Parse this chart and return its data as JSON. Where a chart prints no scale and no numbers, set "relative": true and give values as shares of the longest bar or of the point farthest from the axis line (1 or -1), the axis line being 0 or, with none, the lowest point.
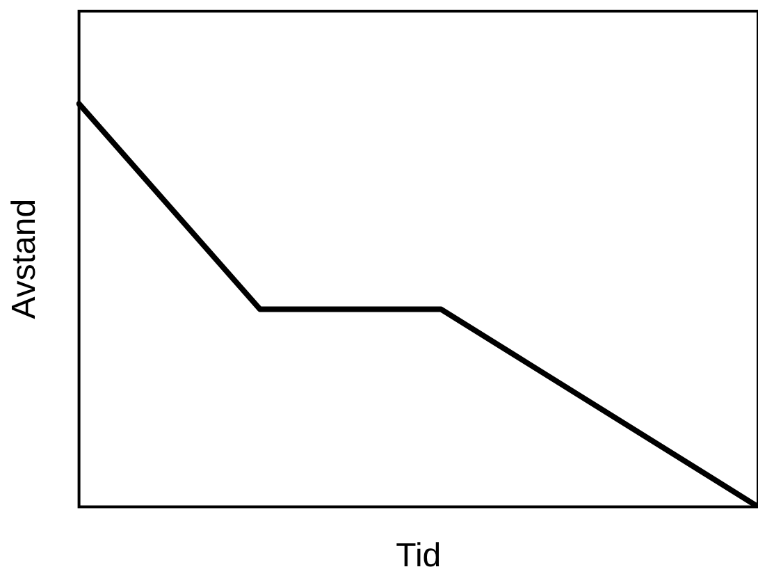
{
  "chart_data": {
    "type": "line",
    "xlabel": "Tid",
    "ylabel": "Avstand",
    "relative": true,
    "grid": false,
    "legend": false,
    "marker": "none",
    "line_style": "solid",
    "categories": [
      null,
      null,
      null,
      null,
      null,
      null,
      null,
      null,
      null,
      null,
      null,
      null,
      null,
      null,
      null,
      null,
      null,
      null,
      null,
      null,
      null,
      null,
      null,
      null,
      null,
      null,
      null,
      null,
      null,
      null,
      null
    ],
    "series": [
      {
        "color": "#000000",
        "values": [
          1,
          null,
          null,
          null,
          null,
          null,
          null,
          null,
          0.49,
          null,
          null,
          null,
          null,
          null,
          null,
          null,
          0.49,
          null,
          null,
          null,
          null,
          null,
          null,
          null,
          null,
          null,
          null,
          null,
          null,
          null,
          0
        ]
      }
    ]
  }
}
